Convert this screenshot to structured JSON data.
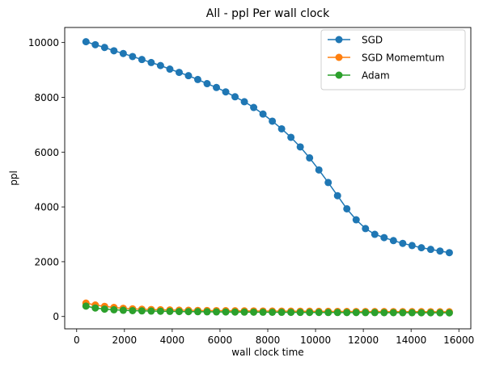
{
  "chart_data": {
    "type": "line",
    "title": "All - ppl Per wall clock",
    "xlabel": "wall clock time",
    "ylabel": "ppl",
    "xlim": [
      -500,
      16500
    ],
    "ylim": [
      -450,
      10550
    ],
    "xticks": [
      0,
      2000,
      4000,
      6000,
      8000,
      10000,
      12000,
      14000,
      16000
    ],
    "yticks": [
      0,
      2000,
      4000,
      6000,
      8000,
      10000
    ],
    "grid": false,
    "legend_position": "top-right",
    "marker": "circle",
    "series": [
      {
        "name": "SGD",
        "color": "#1f77b4",
        "x": [
          390,
          780,
          1170,
          1560,
          1950,
          2340,
          2730,
          3120,
          3510,
          3900,
          4290,
          4680,
          5070,
          5460,
          5850,
          6240,
          6630,
          7020,
          7410,
          7800,
          8190,
          8580,
          8970,
          9360,
          9750,
          10140,
          10530,
          10920,
          11310,
          11700,
          12090,
          12480,
          12870,
          13260,
          13650,
          14040,
          14430,
          14820,
          15210,
          15600
        ],
        "y": [
          10030,
          9920,
          9820,
          9700,
          9600,
          9490,
          9380,
          9270,
          9160,
          9030,
          8910,
          8790,
          8650,
          8500,
          8360,
          8200,
          8020,
          7840,
          7630,
          7390,
          7130,
          6850,
          6540,
          6190,
          5790,
          5350,
          4890,
          4410,
          3930,
          3530,
          3210,
          3000,
          2880,
          2770,
          2670,
          2590,
          2510,
          2450,
          2390,
          2330
        ]
      },
      {
        "name": "SGD Momemtum",
        "color": "#ff7f0e",
        "x": [
          390,
          780,
          1170,
          1560,
          1950,
          2340,
          2730,
          3120,
          3510,
          3900,
          4290,
          4680,
          5070,
          5460,
          5850,
          6240,
          6630,
          7020,
          7410,
          7800,
          8190,
          8580,
          8970,
          9360,
          9750,
          10140,
          10530,
          10920,
          11310,
          11700,
          12090,
          12480,
          12870,
          13260,
          13650,
          14040,
          14430,
          14820,
          15210,
          15600
        ],
        "y": [
          490,
          420,
          370,
          330,
          300,
          280,
          265,
          255,
          245,
          238,
          232,
          227,
          222,
          218,
          215,
          212,
          209,
          206,
          203,
          200,
          198,
          196,
          194,
          192,
          190,
          188,
          186,
          185,
          183,
          182,
          181,
          180,
          179,
          178,
          177,
          176,
          175,
          174,
          173,
          172
        ]
      },
      {
        "name": "Adam",
        "color": "#2ca02c",
        "x": [
          390,
          780,
          1170,
          1560,
          1950,
          2340,
          2730,
          3120,
          3510,
          3900,
          4290,
          4680,
          5070,
          5460,
          5850,
          6240,
          6630,
          7020,
          7410,
          7800,
          8190,
          8580,
          8970,
          9360,
          9750,
          10140,
          10530,
          10920,
          11310,
          11700,
          12090,
          12480,
          12870,
          13260,
          13650,
          14040,
          14430,
          14820,
          15210,
          15600
        ],
        "y": [
          380,
          310,
          270,
          245,
          228,
          215,
          205,
          198,
          192,
          187,
          182,
          178,
          175,
          172,
          169,
          166,
          163,
          161,
          159,
          157,
          155,
          153,
          152,
          150,
          149,
          148,
          147,
          146,
          145,
          144,
          143,
          142,
          141,
          140,
          139,
          138,
          137,
          136,
          135,
          134
        ]
      }
    ]
  }
}
